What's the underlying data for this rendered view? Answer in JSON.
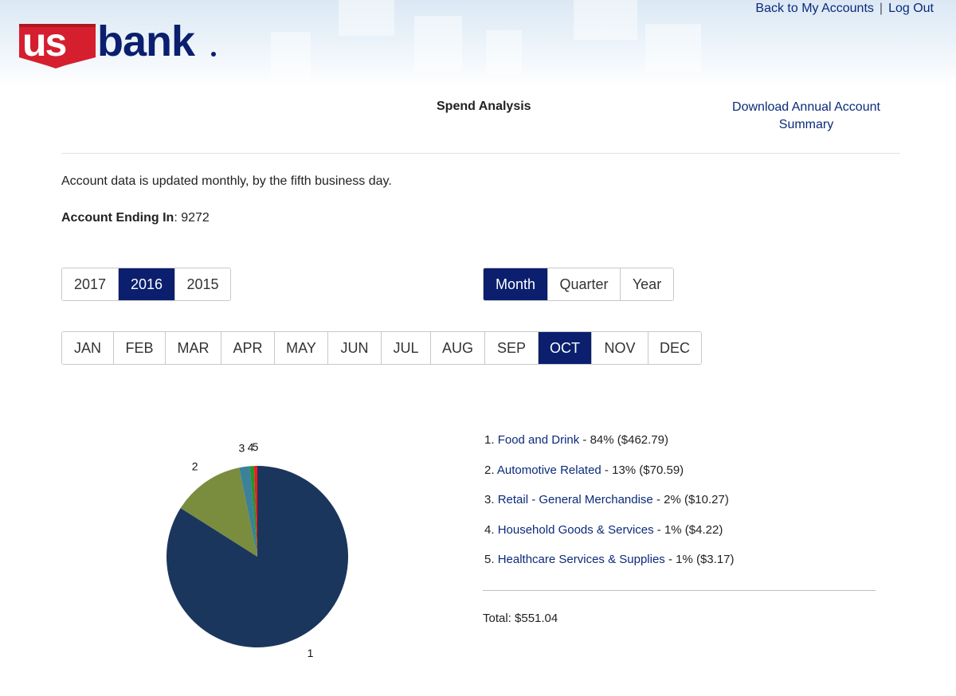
{
  "header": {
    "brand_text": "usbank",
    "links": [
      "Back to My Accounts",
      "Log Out"
    ],
    "separator": "|"
  },
  "title": "Spend Analysis",
  "download_link": "Download Annual Account Summary",
  "notice": "Account data is updated monthly, by the fifth business day.",
  "account": {
    "label": "Account Ending In",
    "number": ": 9272"
  },
  "years": {
    "options": [
      "2017",
      "2016",
      "2015"
    ],
    "selected": "2016"
  },
  "period": {
    "options": [
      "Month",
      "Quarter",
      "Year"
    ],
    "selected": "Month"
  },
  "months": {
    "options": [
      "JAN",
      "FEB",
      "MAR",
      "APR",
      "MAY",
      "JUN",
      "JUL",
      "AUG",
      "SEP",
      "OCT",
      "NOV",
      "DEC"
    ],
    "selected": "OCT"
  },
  "categories": [
    {
      "index": "1.",
      "name": "Food and Drink",
      "detail": " - 84% ($462.79)"
    },
    {
      "index": "2.",
      "name": "Automotive Related",
      "detail": " - 13% ($70.59)"
    },
    {
      "index": "3.",
      "name": "Retail - General Merchandise",
      "detail": " - 2% ($10.27)"
    },
    {
      "index": "4.",
      "name": "Household Goods & Services",
      "detail": " - 1% ($4.22)"
    },
    {
      "index": "5.",
      "name": "Healthcare Services & Supplies",
      "detail": " - 1% ($3.17)"
    }
  ],
  "total": "Total: $551.04",
  "colors": {
    "accent": "#0b1f6e",
    "link": "#0b2a7a",
    "logo_red": "#d51f2f",
    "logo_blue": "#0b1f6e"
  },
  "chart_data": {
    "type": "pie",
    "labels": [
      "1",
      "2",
      "3",
      "4",
      "5"
    ],
    "values": [
      462.79,
      70.59,
      10.27,
      4.22,
      3.17
    ],
    "colors": [
      "#1b365d",
      "#7a8c3e",
      "#3a8199",
      "#2c9132",
      "#f21b1b"
    ]
  }
}
